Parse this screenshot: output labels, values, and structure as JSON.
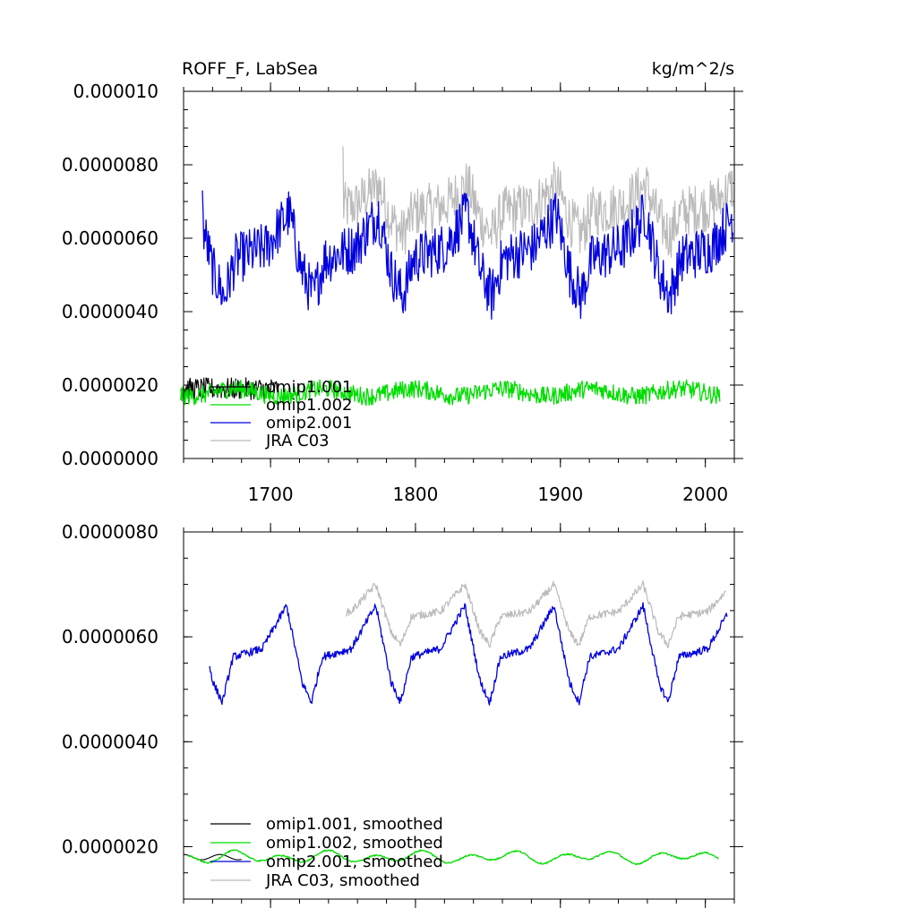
{
  "chart_data": [
    {
      "type": "line",
      "title": "ROFF_F, LabSea",
      "units": "kg/m^2/s",
      "xlim": [
        1640,
        2020
      ],
      "ylim": [
        0,
        1e-05
      ],
      "xticks": [
        1700,
        1800,
        1900,
        2000
      ],
      "xtick_labels": [
        "1700",
        "1800",
        "1900",
        "2000"
      ],
      "yticks": [
        0,
        2e-06,
        4e-06,
        6e-06,
        8e-06,
        1e-05
      ],
      "ytick_labels": [
        "0.0000000",
        "0.0000020",
        "0.0000040",
        "0.0000060",
        "0.0000080",
        "0.000010"
      ],
      "legend_position": "bottom-left",
      "grid": false,
      "series": [
        {
          "name": "omip1.001",
          "color": "#000000",
          "x_range": [
            1638,
            2010
          ],
          "approx_values": {
            "mean": 1.8e-06,
            "amplitude": 2e-07,
            "note_cycle_years": 62
          }
        },
        {
          "name": "omip1.002",
          "color": "#00dd00",
          "x_range": [
            1638,
            2010
          ],
          "approx_values": {
            "mean": 1.8e-06,
            "amplitude": 2e-07,
            "note_cycle_years": 62
          }
        },
        {
          "name": "omip2.001",
          "color": "#0000dd",
          "x_range": [
            1653,
            2019
          ],
          "approx_values": {
            "min": 3.4e-06,
            "max": 7.6e-06,
            "cycle_years": 61
          }
        },
        {
          "name": "JRA C03",
          "color": "#bbbbbb",
          "x_range": [
            1750,
            2019
          ],
          "approx_values": {
            "min": 5e-06,
            "max": 8.5e-06,
            "cycle_years": 61
          }
        }
      ]
    },
    {
      "type": "line",
      "title": "",
      "xlim": [
        1640,
        2020
      ],
      "ylim": [
        1e-06,
        8e-06
      ],
      "xticks": [
        1700,
        1800,
        1900,
        2000
      ],
      "yticks": [
        2e-06,
        4e-06,
        6e-06,
        8e-06
      ],
      "ytick_labels": [
        "0.0000020",
        "0.0000040",
        "0.0000060",
        "0.0000080"
      ],
      "legend_position": "bottom-left",
      "grid": false,
      "series": [
        {
          "name": "omip1.001, smoothed",
          "color": "#000000"
        },
        {
          "name": "omip1.002, smoothed",
          "color": "#00dd00"
        },
        {
          "name": "omip2.001, smoothed",
          "color": "#0000dd"
        },
        {
          "name": "JRA C03, smoothed",
          "color": "#bbbbbb"
        }
      ]
    }
  ]
}
